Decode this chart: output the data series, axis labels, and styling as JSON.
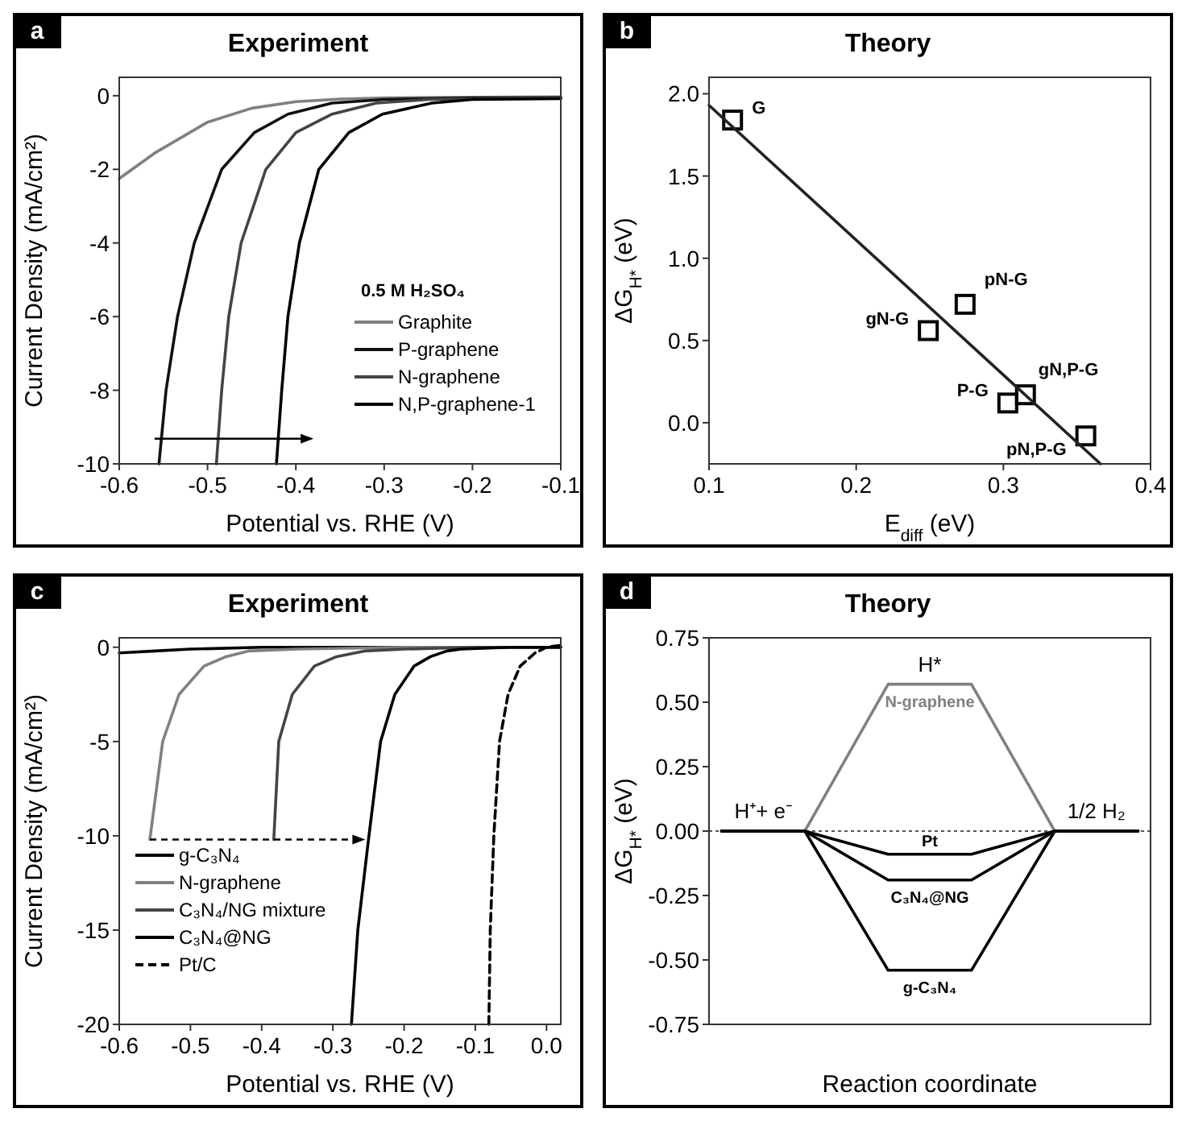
{
  "chart_data": [
    {
      "type": "line",
      "title": "Experiment",
      "xlabel": "Potential vs. RHE (V)",
      "ylabel": "Current Density (mA/cm²)",
      "xlim": [
        -0.6,
        -0.1
      ],
      "ylim": [
        -10,
        0.5
      ],
      "xticks": [
        -0.6,
        -0.5,
        -0.4,
        -0.3,
        -0.2,
        -0.1
      ],
      "yticks": [
        0,
        -2,
        -4,
        -6,
        -8,
        -10
      ],
      "legend": "bottom right",
      "legend_title": "0.5 M H₂SO₄",
      "annotations": [
        "a"
      ],
      "series": [
        {
          "name": "Graphite",
          "color": "#808080",
          "x": [
            -0.6,
            -0.56,
            -0.5,
            -0.45,
            -0.4,
            -0.35,
            -0.3,
            -0.2,
            -0.1
          ],
          "values": [
            -2.25,
            -1.56,
            -0.72,
            -0.34,
            -0.16,
            -0.09,
            -0.06,
            -0.04,
            -0.03
          ]
        },
        {
          "name": "P-graphene",
          "color": "#111111",
          "x": [
            -0.555,
            -0.547,
            -0.534,
            -0.515,
            -0.484,
            -0.447,
            -0.409,
            -0.359,
            -0.3,
            -0.2,
            -0.1
          ],
          "values": [
            -10,
            -8,
            -6,
            -4,
            -2,
            -1,
            -0.5,
            -0.2,
            -0.1,
            -0.06,
            -0.05
          ]
        },
        {
          "name": "N-graphene",
          "color": "#444444",
          "x": [
            -0.49,
            -0.484,
            -0.476,
            -0.462,
            -0.434,
            -0.4,
            -0.359,
            -0.309,
            -0.25,
            -0.1
          ],
          "values": [
            -10,
            -8,
            -6,
            -4,
            -2,
            -1,
            -0.5,
            -0.2,
            -0.1,
            -0.05
          ]
        },
        {
          "name": "N,P-graphene-1",
          "color": "#000000",
          "x": [
            -0.422,
            -0.416,
            -0.409,
            -0.396,
            -0.374,
            -0.34,
            -0.302,
            -0.246,
            -0.2,
            -0.1
          ],
          "values": [
            -10,
            -8,
            -6,
            -4,
            -2,
            -1,
            -0.5,
            -0.2,
            -0.1,
            -0.08
          ]
        }
      ]
    },
    {
      "type": "scatter",
      "title": "Theory",
      "xlabel": "E$_{diff}$ (eV)",
      "ylabel": "ΔG$_{H*}$ (eV)",
      "xlim": [
        0.1,
        0.4
      ],
      "ylim": [
        -0.25,
        2.1
      ],
      "xticks": [
        0.1,
        0.2,
        0.3,
        0.4
      ],
      "yticks": [
        {
          "value": 0,
          "label": "0.0"
        },
        0.5,
        {
          "value": 1,
          "label": "1.0"
        },
        1.5,
        {
          "value": 2,
          "label": "2.0"
        }
      ],
      "legend": false,
      "annotations": [
        "b",
        {
          "text": "G",
          "x": 0.116,
          "y": 1.84
        },
        {
          "text": "gN-G",
          "x": 0.249,
          "y": 0.56
        },
        {
          "text": "pN-G",
          "x": 0.274,
          "y": 0.72
        },
        {
          "text": "P-G",
          "x": 0.303,
          "y": 0.12
        },
        {
          "text": "gN,P-G",
          "x": 0.315,
          "y": 0.17
        },
        {
          "text": "pN,P-G",
          "x": 0.356,
          "y": -0.08
        }
      ],
      "series": [
        {
          "color": "#000000",
          "marker": "square",
          "x": [
            0.116,
            0.249,
            0.274,
            0.303,
            0.315,
            0.356
          ],
          "values": [
            1.84,
            0.56,
            0.72,
            0.12,
            0.17,
            -0.08
          ]
        },
        {
          "type": "line",
          "color": "#222222",
          "x": [
            0.1,
            0.366
          ],
          "values": [
            1.93,
            -0.25
          ]
        }
      ]
    },
    {
      "type": "line",
      "title": "Experiment",
      "xlabel": "Potential vs. RHE (V)",
      "ylabel": "Current Density (mA/cm²)",
      "xlim": [
        -0.6,
        0.02
      ],
      "ylim": [
        -20,
        0.5
      ],
      "xticks": [
        -0.6,
        -0.5,
        -0.4,
        -0.3,
        -0.2,
        -0.1,
        {
          "value": 0,
          "label": "0.0"
        }
      ],
      "yticks": [
        0,
        -5,
        -10,
        -15,
        -20
      ],
      "legend": "bottom left",
      "annotations": [
        "c"
      ],
      "series": [
        {
          "name": "g-C₃N₄",
          "color": "#000000",
          "x": [
            -0.6,
            -0.55,
            -0.5,
            -0.4,
            0.02
          ],
          "values": [
            -0.3,
            -0.2,
            -0.1,
            0,
            0
          ]
        },
        {
          "name": "N-graphene",
          "color": "#808080",
          "x": [
            -0.557,
            -0.539,
            -0.516,
            -0.481,
            -0.45,
            -0.419,
            -0.35,
            -0.2,
            0.02
          ],
          "values": [
            -10.2,
            -5,
            -2.5,
            -1,
            -0.5,
            -0.2,
            -0.1,
            0,
            0
          ]
        },
        {
          "name": "C₃N₄/NG mixture",
          "color": "#444444",
          "x": [
            -0.383,
            -0.376,
            -0.357,
            -0.326,
            -0.295,
            -0.256,
            -0.2,
            -0.1,
            0.02
          ],
          "values": [
            -10.2,
            -5,
            -2.5,
            -1,
            -0.5,
            -0.2,
            -0.1,
            0,
            0
          ]
        },
        {
          "name": "C₃N₄@NG",
          "color": "#000000",
          "x": [
            -0.274,
            -0.265,
            -0.25,
            -0.233,
            -0.213,
            -0.186,
            -0.163,
            -0.14,
            -0.12,
            -0.05,
            0.02
          ],
          "values": [
            -20,
            -15,
            -10.2,
            -5,
            -2.5,
            -1,
            -0.5,
            -0.2,
            -0.1,
            0,
            0
          ]
        },
        {
          "name": "Pt/C",
          "color": "#000000",
          "line_style": "dashed",
          "x": [
            -0.081,
            -0.079,
            -0.074,
            -0.066,
            -0.054,
            -0.037,
            -0.016,
            0,
            0.02
          ],
          "values": [
            -20,
            -15,
            -10,
            -5,
            -2.5,
            -1,
            -0.3,
            0,
            0.1
          ]
        }
      ]
    },
    {
      "type": "line",
      "title": "Theory",
      "xlabel": "Reaction coordinate",
      "ylabel": "ΔG$_{H*}$ (eV)",
      "categories": [
        null,
        null,
        null,
        null,
        null,
        null
      ],
      "tick_labels": "y",
      "ylim": [
        -0.75,
        0.75
      ],
      "yticks": [
        {
          "value": -0.75,
          "label": "-0.75"
        },
        {
          "value": -0.5,
          "label": "-0.50"
        },
        {
          "value": -0.25,
          "label": "-0.25"
        },
        {
          "value": 0,
          "label": "0.00"
        },
        {
          "value": 0.25,
          "label": "0.25"
        },
        {
          "value": 0.5,
          "label": "0.50"
        },
        {
          "value": 0.75,
          "label": "0.75"
        }
      ],
      "legend": false,
      "ref_lines": [
        {
          "axis": "y",
          "value": 0,
          "line_style": "dotted",
          "color": "#555555"
        }
      ],
      "annotations": [
        "d",
        "H⁺+ e⁻",
        "H*",
        "1/2 H₂"
      ],
      "series": [
        {
          "name": "N-graphene",
          "color": "#808080",
          "values": [
            0,
            0,
            0.57,
            0.57,
            0,
            0
          ]
        },
        {
          "name": "Pt",
          "color": "#000000",
          "values": [
            0,
            0,
            -0.09,
            -0.09,
            0,
            0
          ]
        },
        {
          "name": "C₃N₄@NG",
          "color": "#000000",
          "values": [
            0,
            0,
            -0.19,
            -0.19,
            0,
            0
          ]
        },
        {
          "name": "g-C₃N₄",
          "color": "#000000",
          "values": [
            0,
            0,
            -0.54,
            -0.54,
            0,
            0
          ]
        }
      ]
    }
  ]
}
